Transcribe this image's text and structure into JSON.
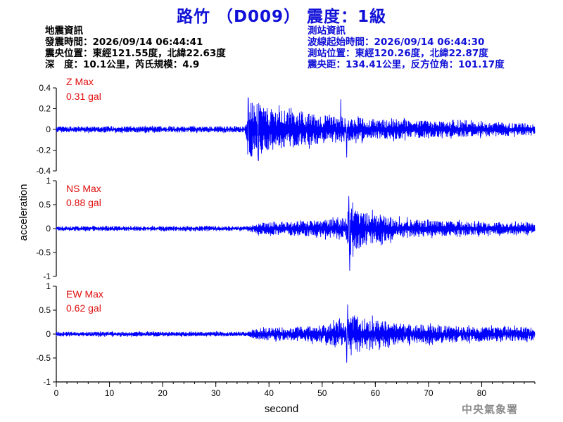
{
  "header": {
    "title": "路竹 （D009） 震度：1級"
  },
  "quake_info": {
    "heading": "地震資訊",
    "time": "發震時間：2026/09/14 06:44:41",
    "location": "震央位置：東經121.55度，北緯22.63度",
    "depth_mag": "深　度：10.1公里，芮氏規模：4.9"
  },
  "station_info": {
    "heading": "測站資訊",
    "wave_start": "波線起始時間：2026/09/14 06:44:30",
    "location": "測站位置：東經120.26度，北緯22.87度",
    "distance": "震央距：134.41公里，反方位角：101.17度"
  },
  "footer": {
    "agency": "中央氣象署"
  },
  "colors": {
    "title": "#1010d8",
    "trace": "#0000ff",
    "max_label": "#e01010"
  },
  "chart_data": {
    "type": "line",
    "xlabel": "second",
    "ylabel": "acceleration",
    "xlim": [
      0,
      90
    ],
    "x_ticks": [
      0,
      10,
      20,
      30,
      40,
      50,
      60,
      70,
      80
    ],
    "grid": false,
    "panels": [
      {
        "component": "Z",
        "max_label": "Z Max",
        "max_value": "0.31 gal",
        "ylim": [
          -0.4,
          0.4
        ],
        "y_ticks": [
          -0.4,
          -0.2,
          0,
          0.2,
          0.4
        ],
        "y_tick_labels": [
          "-0.4",
          "-0.2",
          "0",
          "0.2",
          "0.4"
        ],
        "envelope": [
          [
            0,
            0.03
          ],
          [
            35.5,
            0.03
          ],
          [
            36,
            0.28
          ],
          [
            40,
            0.2
          ],
          [
            50,
            0.14
          ],
          [
            60,
            0.1
          ],
          [
            70,
            0.08
          ],
          [
            90,
            0.06
          ]
        ],
        "peaks": [
          [
            36.1,
            0.3
          ],
          [
            38,
            -0.3
          ],
          [
            53.5,
            0.29
          ],
          [
            54.6,
            -0.27
          ]
        ]
      },
      {
        "component": "NS",
        "max_label": "NS Max",
        "max_value": "0.88 gal",
        "ylim": [
          -1,
          1
        ],
        "y_ticks": [
          -1,
          -0.5,
          0,
          0.5,
          1
        ],
        "y_tick_labels": [
          "-1",
          "-0.5",
          "0",
          "0.5",
          "1"
        ],
        "envelope": [
          [
            0,
            0.05
          ],
          [
            36,
            0.05
          ],
          [
            38,
            0.12
          ],
          [
            50,
            0.18
          ],
          [
            54.5,
            0.25
          ],
          [
            55.3,
            0.55
          ],
          [
            58,
            0.35
          ],
          [
            65,
            0.2
          ],
          [
            75,
            0.15
          ],
          [
            90,
            0.12
          ]
        ],
        "peaks": [
          [
            55.0,
            0.68
          ],
          [
            55.2,
            -0.88
          ]
        ]
      },
      {
        "component": "EW",
        "max_label": "EW Max",
        "max_value": "0.62 gal",
        "ylim": [
          -1,
          1
        ],
        "y_ticks": [
          -1,
          -0.5,
          0,
          0.5,
          1
        ],
        "y_tick_labels": [
          "-1",
          "-0.5",
          "0",
          "0.5",
          "1"
        ],
        "envelope": [
          [
            0,
            0.05
          ],
          [
            36,
            0.05
          ],
          [
            38,
            0.12
          ],
          [
            50,
            0.18
          ],
          [
            54.5,
            0.3
          ],
          [
            56,
            0.4
          ],
          [
            60,
            0.3
          ],
          [
            65,
            0.22
          ],
          [
            75,
            0.17
          ],
          [
            90,
            0.14
          ]
        ],
        "peaks": [
          [
            54.8,
            0.62
          ],
          [
            54.6,
            -0.6
          ]
        ]
      }
    ]
  }
}
